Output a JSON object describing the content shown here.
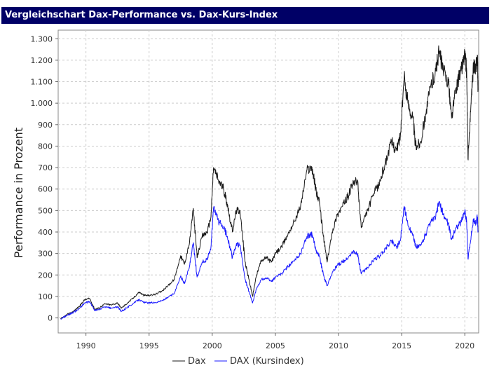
{
  "header": {
    "title": "Vergleichschart Dax-Performance vs. Dax-Kurs-Index"
  },
  "chart_data": {
    "type": "line",
    "title": "",
    "xlabel": "",
    "ylabel": "Performance in Prozent",
    "xlim": [
      1987.8,
      2021.1
    ],
    "ylim": [
      -70,
      1340
    ],
    "grid": true,
    "legend_position": "bottom",
    "x_ticks": [
      {
        "value": 1990,
        "label": "1990"
      },
      {
        "value": 1995,
        "label": "1995"
      },
      {
        "value": 2000,
        "label": "2000"
      },
      {
        "value": 2005,
        "label": "2005"
      },
      {
        "value": 2010,
        "label": "2010"
      },
      {
        "value": 2015,
        "label": "2015"
      },
      {
        "value": 2020,
        "label": "2020"
      }
    ],
    "y_ticks": [
      {
        "value": 0,
        "label": "0"
      },
      {
        "value": 100,
        "label": "100"
      },
      {
        "value": 200,
        "label": "200"
      },
      {
        "value": 300,
        "label": "300"
      },
      {
        "value": 400,
        "label": "400"
      },
      {
        "value": 500,
        "label": "500"
      },
      {
        "value": 600,
        "label": "600"
      },
      {
        "value": 700,
        "label": "700"
      },
      {
        "value": 800,
        "label": "800"
      },
      {
        "value": 900,
        "label": "900"
      },
      {
        "value": 1000,
        "label": "1.000"
      },
      {
        "value": 1100,
        "label": "1.100"
      },
      {
        "value": 1200,
        "label": "1.200"
      },
      {
        "value": 1300,
        "label": "1.300"
      }
    ],
    "series": [
      {
        "name": "Dax",
        "color": "#1a1a1a",
        "points": [
          [
            1988.0,
            -5
          ],
          [
            1988.5,
            15
          ],
          [
            1989.0,
            30
          ],
          [
            1989.5,
            55
          ],
          [
            1989.9,
            85
          ],
          [
            1990.3,
            90
          ],
          [
            1990.7,
            40
          ],
          [
            1991.0,
            45
          ],
          [
            1991.5,
            65
          ],
          [
            1992.0,
            60
          ],
          [
            1992.5,
            70
          ],
          [
            1992.8,
            45
          ],
          [
            1993.3,
            70
          ],
          [
            1993.8,
            95
          ],
          [
            1994.2,
            120
          ],
          [
            1994.6,
            105
          ],
          [
            1995.0,
            105
          ],
          [
            1995.5,
            110
          ],
          [
            1996.0,
            125
          ],
          [
            1996.5,
            150
          ],
          [
            1997.0,
            180
          ],
          [
            1997.5,
            290
          ],
          [
            1997.8,
            250
          ],
          [
            1998.2,
            350
          ],
          [
            1998.5,
            510
          ],
          [
            1998.8,
            280
          ],
          [
            1999.2,
            380
          ],
          [
            1999.6,
            400
          ],
          [
            1999.9,
            470
          ],
          [
            2000.1,
            700
          ],
          [
            2000.5,
            640
          ],
          [
            2000.9,
            600
          ],
          [
            2001.2,
            530
          ],
          [
            2001.6,
            400
          ],
          [
            2001.9,
            500
          ],
          [
            2002.2,
            500
          ],
          [
            2002.6,
            260
          ],
          [
            2002.9,
            180
          ],
          [
            2003.2,
            100
          ],
          [
            2003.5,
            200
          ],
          [
            2003.9,
            270
          ],
          [
            2004.3,
            280
          ],
          [
            2004.7,
            260
          ],
          [
            2005.0,
            300
          ],
          [
            2005.5,
            330
          ],
          [
            2006.0,
            390
          ],
          [
            2006.5,
            450
          ],
          [
            2007.0,
            520
          ],
          [
            2007.5,
            690
          ],
          [
            2007.9,
            700
          ],
          [
            2008.2,
            600
          ],
          [
            2008.5,
            530
          ],
          [
            2008.8,
            380
          ],
          [
            2009.1,
            260
          ],
          [
            2009.5,
            400
          ],
          [
            2009.9,
            480
          ],
          [
            2010.3,
            520
          ],
          [
            2010.7,
            560
          ],
          [
            2011.1,
            620
          ],
          [
            2011.5,
            640
          ],
          [
            2011.8,
            420
          ],
          [
            2012.3,
            500
          ],
          [
            2012.8,
            580
          ],
          [
            2013.2,
            620
          ],
          [
            2013.7,
            720
          ],
          [
            2014.2,
            820
          ],
          [
            2014.6,
            780
          ],
          [
            2014.9,
            850
          ],
          [
            2015.2,
            1120
          ],
          [
            2015.5,
            1000
          ],
          [
            2015.9,
            930
          ],
          [
            2016.1,
            800
          ],
          [
            2016.5,
            820
          ],
          [
            2016.9,
            950
          ],
          [
            2017.3,
            1080
          ],
          [
            2017.7,
            1150
          ],
          [
            2017.95,
            1240
          ],
          [
            2018.3,
            1150
          ],
          [
            2018.7,
            1100
          ],
          [
            2018.95,
            930
          ],
          [
            2019.3,
            1070
          ],
          [
            2019.7,
            1150
          ],
          [
            2020.0,
            1230
          ],
          [
            2020.15,
            1150
          ],
          [
            2020.25,
            740
          ],
          [
            2020.5,
            1000
          ],
          [
            2020.7,
            1180
          ],
          [
            2020.85,
            1150
          ],
          [
            2021.0,
            1220
          ],
          [
            2021.05,
            1060
          ]
        ]
      },
      {
        "name": "DAX (Kursindex)",
        "color": "#1a1aff",
        "points": [
          [
            1988.0,
            -5
          ],
          [
            1988.5,
            12
          ],
          [
            1989.0,
            25
          ],
          [
            1989.5,
            45
          ],
          [
            1989.9,
            70
          ],
          [
            1990.3,
            75
          ],
          [
            1990.7,
            35
          ],
          [
            1991.0,
            38
          ],
          [
            1991.5,
            52
          ],
          [
            1992.0,
            45
          ],
          [
            1992.5,
            52
          ],
          [
            1992.8,
            30
          ],
          [
            1993.3,
            50
          ],
          [
            1993.8,
            70
          ],
          [
            1994.2,
            85
          ],
          [
            1994.6,
            72
          ],
          [
            1995.0,
            70
          ],
          [
            1995.5,
            72
          ],
          [
            1996.0,
            80
          ],
          [
            1996.5,
            95
          ],
          [
            1997.0,
            115
          ],
          [
            1997.5,
            195
          ],
          [
            1997.8,
            160
          ],
          [
            1998.2,
            240
          ],
          [
            1998.5,
            350
          ],
          [
            1998.8,
            190
          ],
          [
            1999.2,
            260
          ],
          [
            1999.6,
            270
          ],
          [
            1999.9,
            330
          ],
          [
            2000.1,
            510
          ],
          [
            2000.5,
            450
          ],
          [
            2000.9,
            420
          ],
          [
            2001.2,
            380
          ],
          [
            2001.6,
            280
          ],
          [
            2001.9,
            340
          ],
          [
            2002.2,
            340
          ],
          [
            2002.6,
            180
          ],
          [
            2002.9,
            125
          ],
          [
            2003.2,
            70
          ],
          [
            2003.5,
            135
          ],
          [
            2003.9,
            180
          ],
          [
            2004.3,
            185
          ],
          [
            2004.7,
            170
          ],
          [
            2005.0,
            190
          ],
          [
            2005.5,
            205
          ],
          [
            2006.0,
            240
          ],
          [
            2006.5,
            265
          ],
          [
            2007.0,
            300
          ],
          [
            2007.5,
            380
          ],
          [
            2007.9,
            390
          ],
          [
            2008.2,
            320
          ],
          [
            2008.5,
            285
          ],
          [
            2008.8,
            200
          ],
          [
            2009.1,
            150
          ],
          [
            2009.5,
            210
          ],
          [
            2009.9,
            245
          ],
          [
            2010.3,
            260
          ],
          [
            2010.7,
            275
          ],
          [
            2011.1,
            305
          ],
          [
            2011.5,
            300
          ],
          [
            2011.8,
            205
          ],
          [
            2012.3,
            235
          ],
          [
            2012.8,
            270
          ],
          [
            2013.2,
            285
          ],
          [
            2013.7,
            320
          ],
          [
            2014.2,
            360
          ],
          [
            2014.6,
            330
          ],
          [
            2014.9,
            360
          ],
          [
            2015.2,
            520
          ],
          [
            2015.5,
            430
          ],
          [
            2015.9,
            390
          ],
          [
            2016.1,
            330
          ],
          [
            2016.5,
            335
          ],
          [
            2016.9,
            390
          ],
          [
            2017.3,
            445
          ],
          [
            2017.7,
            470
          ],
          [
            2017.95,
            540
          ],
          [
            2018.3,
            480
          ],
          [
            2018.7,
            440
          ],
          [
            2018.95,
            365
          ],
          [
            2019.3,
            420
          ],
          [
            2019.7,
            445
          ],
          [
            2020.0,
            500
          ],
          [
            2020.15,
            450
          ],
          [
            2020.25,
            275
          ],
          [
            2020.5,
            380
          ],
          [
            2020.7,
            460
          ],
          [
            2020.85,
            440
          ],
          [
            2021.0,
            470
          ],
          [
            2021.05,
            400
          ]
        ]
      }
    ]
  }
}
